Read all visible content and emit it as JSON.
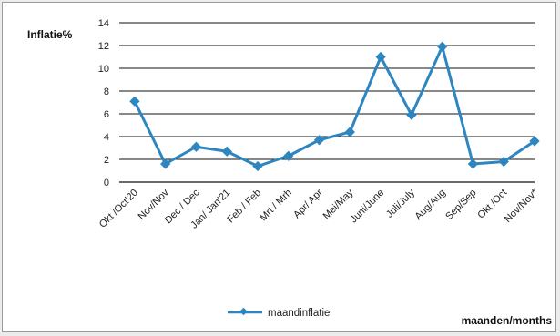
{
  "chart_data": {
    "type": "line",
    "title": "",
    "ylabel": "Inflatie%",
    "xlabel": "maanden/months",
    "ylim": [
      0,
      14
    ],
    "yticks": [
      "0",
      "2",
      "4",
      "6",
      "8",
      "10",
      "12",
      "14"
    ],
    "grid": true,
    "legend_position": "bottom",
    "categories": [
      "Okt /Oct'20",
      "Nov/Nov",
      "Dec / Dec",
      "Jan/ Jan'21",
      "Feb / Feb",
      "Mrt / Mrh",
      "Apr/ Apr",
      "Mei/May",
      "Juni/June",
      "Juli/July",
      "Aug/Aug",
      "Sep/Sep",
      "Okt /Oct",
      "Nov/Nov*"
    ],
    "series": [
      {
        "name": "maandinflatie",
        "color": "#2e86c1",
        "values": [
          7.1,
          1.6,
          3.1,
          2.7,
          1.4,
          2.3,
          3.7,
          4.4,
          11.0,
          5.9,
          11.9,
          1.6,
          1.8,
          3.6
        ]
      }
    ]
  }
}
